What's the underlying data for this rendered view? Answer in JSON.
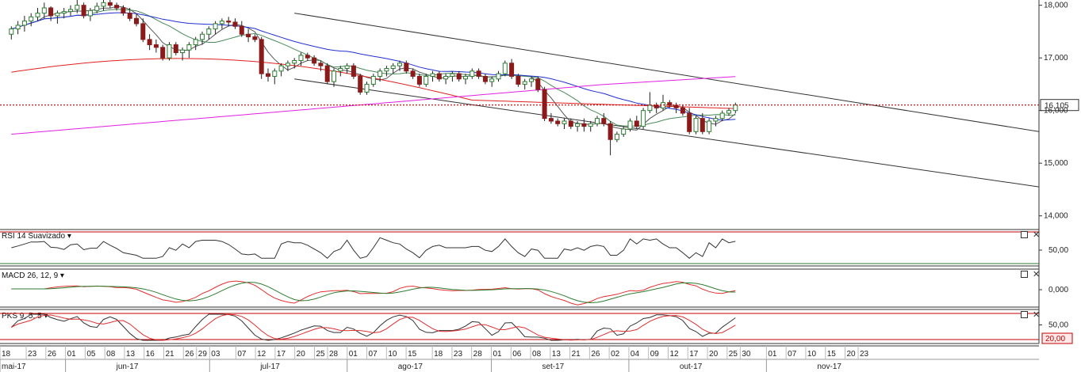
{
  "chart_data": {
    "type": "candlestick",
    "price_panel": {
      "ylim": [
        13800,
        18100
      ],
      "yticks": [
        14000,
        15000,
        16000,
        17000,
        18000
      ],
      "ytick_labels": [
        "14,000",
        "15,000",
        "16,000",
        "17,000",
        "18,000"
      ],
      "last_price": 16105,
      "last_price_label": "16,105",
      "candles": [
        [
          1,
          17450,
          17600,
          17350,
          17550
        ],
        [
          2,
          17550,
          17700,
          17450,
          17620
        ],
        [
          3,
          17620,
          17800,
          17500,
          17700
        ],
        [
          4,
          17700,
          17850,
          17600,
          17780
        ],
        [
          5,
          17780,
          17950,
          17700,
          17850
        ],
        [
          6,
          17850,
          18050,
          17750,
          17950
        ],
        [
          7,
          17950,
          17980,
          17700,
          17800
        ],
        [
          8,
          17800,
          17900,
          17650,
          17850
        ],
        [
          9,
          17850,
          17950,
          17750,
          17880
        ],
        [
          10,
          17880,
          18000,
          17800,
          17920
        ],
        [
          11,
          17920,
          18100,
          17850,
          18000
        ],
        [
          12,
          18000,
          18050,
          17750,
          17800
        ],
        [
          13,
          17800,
          17950,
          17700,
          17900
        ],
        [
          14,
          17900,
          18050,
          17850,
          17980
        ],
        [
          15,
          17980,
          18100,
          17900,
          18050
        ],
        [
          16,
          18050,
          18100,
          17950,
          18000
        ],
        [
          17,
          18000,
          18050,
          17900,
          17950
        ],
        [
          18,
          17950,
          18000,
          17800,
          17850
        ],
        [
          19,
          17850,
          17950,
          17700,
          17750
        ],
        [
          20,
          17750,
          17850,
          17600,
          17650
        ],
        [
          21,
          17650,
          17750,
          17300,
          17350
        ],
        [
          22,
          17350,
          17450,
          17150,
          17250
        ],
        [
          23,
          17250,
          17350,
          17100,
          17200
        ],
        [
          24,
          17200,
          17250,
          16950,
          17000
        ],
        [
          25,
          17000,
          17300,
          16950,
          17250
        ],
        [
          26,
          17250,
          17300,
          17050,
          17100
        ],
        [
          27,
          17100,
          17200,
          16950,
          17150
        ],
        [
          28,
          17150,
          17300,
          17000,
          17250
        ],
        [
          29,
          17250,
          17400,
          17150,
          17350
        ],
        [
          30,
          17350,
          17500,
          17250,
          17450
        ],
        [
          31,
          17450,
          17600,
          17350,
          17550
        ],
        [
          32,
          17550,
          17700,
          17450,
          17650
        ],
        [
          33,
          17650,
          17750,
          17550,
          17700
        ],
        [
          34,
          17700,
          17780,
          17600,
          17680
        ],
        [
          35,
          17680,
          17750,
          17550,
          17600
        ],
        [
          36,
          17600,
          17700,
          17400,
          17450
        ],
        [
          37,
          17450,
          17550,
          17300,
          17400
        ],
        [
          38,
          17400,
          17450,
          17300,
          17350
        ],
        [
          39,
          17350,
          17400,
          16600,
          16700
        ],
        [
          40,
          16700,
          16800,
          16550,
          16650
        ],
        [
          41,
          16650,
          16800,
          16500,
          16750
        ],
        [
          42,
          16750,
          16900,
          16650,
          16850
        ],
        [
          43,
          16850,
          16950,
          16750,
          16900
        ],
        [
          44,
          16900,
          17000,
          16800,
          16950
        ],
        [
          45,
          16950,
          17100,
          16850,
          17050
        ],
        [
          46,
          17050,
          17100,
          16950,
          17000
        ],
        [
          47,
          17000,
          17050,
          16850,
          16900
        ],
        [
          48,
          16900,
          16950,
          16750,
          16850
        ],
        [
          49,
          16850,
          16900,
          16500,
          16550
        ],
        [
          50,
          16550,
          16800,
          16450,
          16750
        ],
        [
          51,
          16750,
          16850,
          16650,
          16800
        ],
        [
          52,
          16800,
          16900,
          16700,
          16850
        ],
        [
          53,
          16850,
          16900,
          16600,
          16650
        ],
        [
          54,
          16650,
          16700,
          16300,
          16350
        ],
        [
          55,
          16350,
          16550,
          16300,
          16500
        ],
        [
          56,
          16500,
          16700,
          16450,
          16650
        ],
        [
          57,
          16650,
          16800,
          16550,
          16750
        ],
        [
          58,
          16750,
          16850,
          16650,
          16800
        ],
        [
          59,
          16800,
          16900,
          16700,
          16850
        ],
        [
          60,
          16850,
          16950,
          16750,
          16900
        ],
        [
          61,
          16900,
          16950,
          16700,
          16750
        ],
        [
          62,
          16750,
          16800,
          16600,
          16650
        ],
        [
          63,
          16650,
          16700,
          16450,
          16500
        ],
        [
          64,
          16500,
          16700,
          16450,
          16650
        ],
        [
          65,
          16650,
          16750,
          16550,
          16700
        ],
        [
          66,
          16700,
          16750,
          16550,
          16600
        ],
        [
          67,
          16600,
          16700,
          16500,
          16650
        ],
        [
          68,
          16650,
          16750,
          16550,
          16700
        ],
        [
          69,
          16700,
          16750,
          16550,
          16600
        ],
        [
          70,
          16600,
          16700,
          16500,
          16650
        ],
        [
          71,
          16650,
          16800,
          16600,
          16750
        ],
        [
          72,
          16750,
          16800,
          16600,
          16650
        ],
        [
          73,
          16650,
          16700,
          16500,
          16550
        ],
        [
          74,
          16550,
          16650,
          16450,
          16600
        ],
        [
          75,
          16600,
          16750,
          16550,
          16700
        ],
        [
          76,
          16700,
          16950,
          16650,
          16900
        ],
        [
          77,
          16900,
          16980,
          16600,
          16650
        ],
        [
          78,
          16650,
          16700,
          16450,
          16500
        ],
        [
          79,
          16500,
          16600,
          16400,
          16550
        ],
        [
          80,
          16550,
          16650,
          16450,
          16600
        ],
        [
          81,
          16600,
          16650,
          16350,
          16400
        ],
        [
          82,
          16400,
          16450,
          15800,
          15850
        ],
        [
          83,
          15850,
          15950,
          15750,
          15800
        ],
        [
          84,
          15800,
          15850,
          15700,
          15750
        ],
        [
          85,
          15750,
          15850,
          15650,
          15800
        ],
        [
          86,
          15800,
          15850,
          15650,
          15700
        ],
        [
          87,
          15700,
          15800,
          15600,
          15750
        ],
        [
          88,
          15750,
          15850,
          15600,
          15700
        ],
        [
          89,
          15700,
          15800,
          15600,
          15750
        ],
        [
          90,
          15750,
          15900,
          15700,
          15850
        ],
        [
          91,
          15850,
          15950,
          15700,
          15750
        ],
        [
          92,
          15750,
          15800,
          15150,
          15450
        ],
        [
          93,
          15450,
          15600,
          15400,
          15550
        ],
        [
          94,
          15550,
          15700,
          15500,
          15650
        ],
        [
          95,
          15650,
          15850,
          15600,
          15800
        ],
        [
          96,
          15800,
          15900,
          15650,
          15700
        ],
        [
          97,
          15700,
          16050,
          15650,
          16000
        ],
        [
          98,
          16000,
          16350,
          15950,
          16100
        ],
        [
          99,
          16100,
          16150,
          15950,
          16050
        ],
        [
          100,
          16050,
          16300,
          16000,
          16150
        ],
        [
          101,
          16150,
          16200,
          16050,
          16100
        ],
        [
          102,
          16100,
          16150,
          15950,
          16050
        ],
        [
          103,
          16050,
          16100,
          15900,
          15950
        ],
        [
          104,
          15950,
          16050,
          15550,
          15600
        ],
        [
          105,
          15600,
          15900,
          15550,
          15850
        ],
        [
          106,
          15850,
          15950,
          15550,
          15600
        ],
        [
          107,
          15600,
          15850,
          15550,
          15800
        ],
        [
          108,
          15800,
          15900,
          15700,
          15850
        ],
        [
          109,
          15850,
          16000,
          15800,
          15950
        ],
        [
          110,
          15950,
          16050,
          15900,
          16000
        ],
        [
          111,
          16000,
          16150,
          15950,
          16105
        ]
      ]
    },
    "rsi_panel": {
      "label": "RSI 14 Suavizado",
      "ytick_labels": [
        "50,00"
      ],
      "ylim": [
        0,
        100
      ],
      "overbought": 80,
      "oversold": 20
    },
    "macd_panel": {
      "label": "MACD 26, 12, 9",
      "ytick_labels": [
        "0,000"
      ]
    },
    "pks_panel": {
      "label": "PKS 9, 5, 5",
      "ytick_labels": [
        "50,00"
      ],
      "level_label": "20,00",
      "ylim": [
        0,
        100
      ],
      "overbought": 80,
      "oversold": 20
    },
    "x_axis": {
      "day_ticks": [
        {
          "i": 0,
          "d": "18"
        },
        {
          "i": 4,
          "d": "23"
        },
        {
          "i": 7,
          "d": "26"
        },
        {
          "i": 10,
          "d": "01"
        },
        {
          "i": 13,
          "d": "05"
        },
        {
          "i": 16,
          "d": "08"
        },
        {
          "i": 19,
          "d": "13"
        },
        {
          "i": 22,
          "d": "16"
        },
        {
          "i": 25,
          "d": "21"
        },
        {
          "i": 28,
          "d": "26"
        },
        {
          "i": 30,
          "d": "29"
        },
        {
          "i": 32,
          "d": "03"
        },
        {
          "i": 36,
          "d": "07"
        },
        {
          "i": 39,
          "d": "12"
        },
        {
          "i": 42,
          "d": "17"
        },
        {
          "i": 45,
          "d": "20"
        },
        {
          "i": 48,
          "d": "25"
        },
        {
          "i": 50,
          "d": "28"
        },
        {
          "i": 53,
          "d": "01"
        },
        {
          "i": 56,
          "d": "07"
        },
        {
          "i": 59,
          "d": "10"
        },
        {
          "i": 62,
          "d": "15"
        },
        {
          "i": 66,
          "d": "18"
        },
        {
          "i": 69,
          "d": "23"
        },
        {
          "i": 72,
          "d": "28"
        },
        {
          "i": 75,
          "d": "01"
        },
        {
          "i": 78,
          "d": "06"
        },
        {
          "i": 81,
          "d": "08"
        },
        {
          "i": 84,
          "d": "13"
        },
        {
          "i": 87,
          "d": "21"
        },
        {
          "i": 90,
          "d": "26"
        },
        {
          "i": 93,
          "d": "02"
        },
        {
          "i": 96,
          "d": "04"
        },
        {
          "i": 99,
          "d": "09"
        },
        {
          "i": 102,
          "d": "12"
        },
        {
          "i": 105,
          "d": "17"
        },
        {
          "i": 108,
          "d": "20"
        },
        {
          "i": 111,
          "d": "25"
        },
        {
          "i": 113,
          "d": "30"
        },
        {
          "i": 117,
          "d": "01"
        },
        {
          "i": 120,
          "d": "07"
        },
        {
          "i": 123,
          "d": "10"
        },
        {
          "i": 126,
          "d": "15"
        },
        {
          "i": 129,
          "d": "20"
        },
        {
          "i": 131,
          "d": "23"
        }
      ],
      "month_ticks": [
        {
          "i": 0,
          "m": "mai-17"
        },
        {
          "i": 10,
          "m": "jun-17"
        },
        {
          "i": 32,
          "m": "jul-17"
        },
        {
          "i": 53,
          "m": "ago-17"
        },
        {
          "i": 75,
          "m": "set-17"
        },
        {
          "i": 96,
          "m": "out-17"
        },
        {
          "i": 117,
          "m": "nov-17"
        }
      ]
    },
    "colors": {
      "up": "#2e7d32",
      "down": "#8b1a1a",
      "ma_short": "#555555",
      "ma_green": "#4a8a5a",
      "ma_blue": "#2030d0",
      "ma_red": "#e02020",
      "ma_magenta": "#e020e0",
      "channel": "#333333",
      "last_price_line": "#c00000",
      "rsi": "#333333",
      "macd_line": "#e03030",
      "macd_signal": "#2e7d32",
      "pks_k": "#333333",
      "pks_d": "#e03030",
      "level_box": "#ffe8e8"
    }
  }
}
